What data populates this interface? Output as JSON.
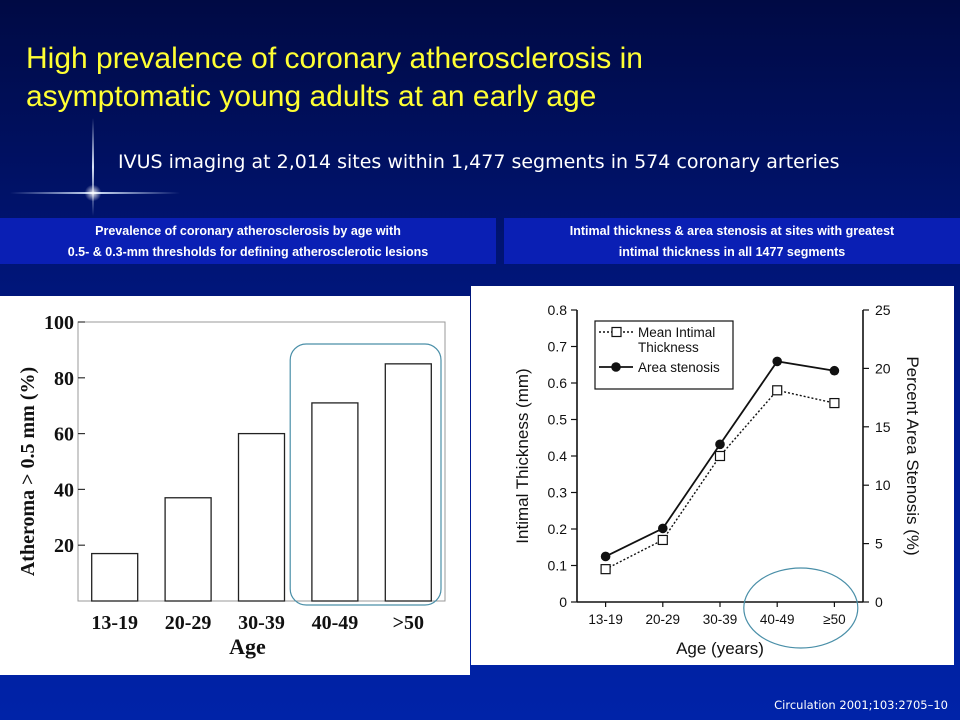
{
  "slide": {
    "title_line1": "High prevalence of coronary atherosclerosis in",
    "title_line2": "asymptomatic young adults at an early age",
    "subtitle": "IVUS imaging at 2,014 sites within 1,477 segments in 574 coronary arteries",
    "caption_left_line1": "Prevalence of coronary atherosclerosis by age with",
    "caption_left_line2": "0.5- & 0.3-mm thresholds for defining atherosclerotic lesions",
    "caption_right_line1": "Intimal thickness & area stenosis at sites with greatest",
    "caption_right_line2": "intimal thickness in all 1477 segments",
    "footer": "Circulation 2001;103:2705–10"
  },
  "colors": {
    "background": "#001a8e",
    "title": "#ffff33",
    "caption_band": "#0a1fb4",
    "highlight_outline": "#4a8fa8"
  },
  "chart_data": [
    {
      "type": "bar",
      "categories": [
        "13-19",
        "20-29",
        "30-39",
        "40-49",
        ">50"
      ],
      "values": [
        17,
        37,
        60,
        71,
        85
      ],
      "xlabel": "Age",
      "ylabel": "Atheroma > 0.5 mm (%)",
      "ylim": [
        0,
        100
      ],
      "yticks": [
        20,
        40,
        60,
        80,
        100
      ],
      "highlight": [
        "40-49",
        ">50"
      ]
    },
    {
      "type": "line",
      "categories": [
        "13-19",
        "20-29",
        "30-39",
        "40-49",
        "≥50"
      ],
      "xlabel": "Age (years)",
      "ylabel": "Intimal Thickness (mm)",
      "ylabel_right": "Percent Area Stenosis (%)",
      "ylim": [
        0,
        0.8
      ],
      "ylim_right": [
        0,
        25
      ],
      "yticks": [
        "0",
        "0.1",
        "0.2",
        "0.3",
        "0.4",
        "0.5",
        "0.6",
        "0.7",
        "0.8"
      ],
      "yticks_right": [
        "0",
        "5",
        "10",
        "15",
        "20",
        "25"
      ],
      "series": [
        {
          "name": "Mean Intimal Thickness",
          "legend_line1": "Mean Intimal",
          "legend_line2": "Thickness",
          "axis": "left",
          "marker": "open-square",
          "style": "dotted",
          "values": [
            0.09,
            0.17,
            0.4,
            0.58,
            0.545
          ]
        },
        {
          "name": "Area stenosis",
          "axis": "right",
          "marker": "filled-circle",
          "style": "solid",
          "values": [
            3.9,
            6.3,
            13.5,
            20.6,
            19.8
          ]
        }
      ],
      "highlight": [
        "40-49",
        "≥50"
      ]
    }
  ]
}
